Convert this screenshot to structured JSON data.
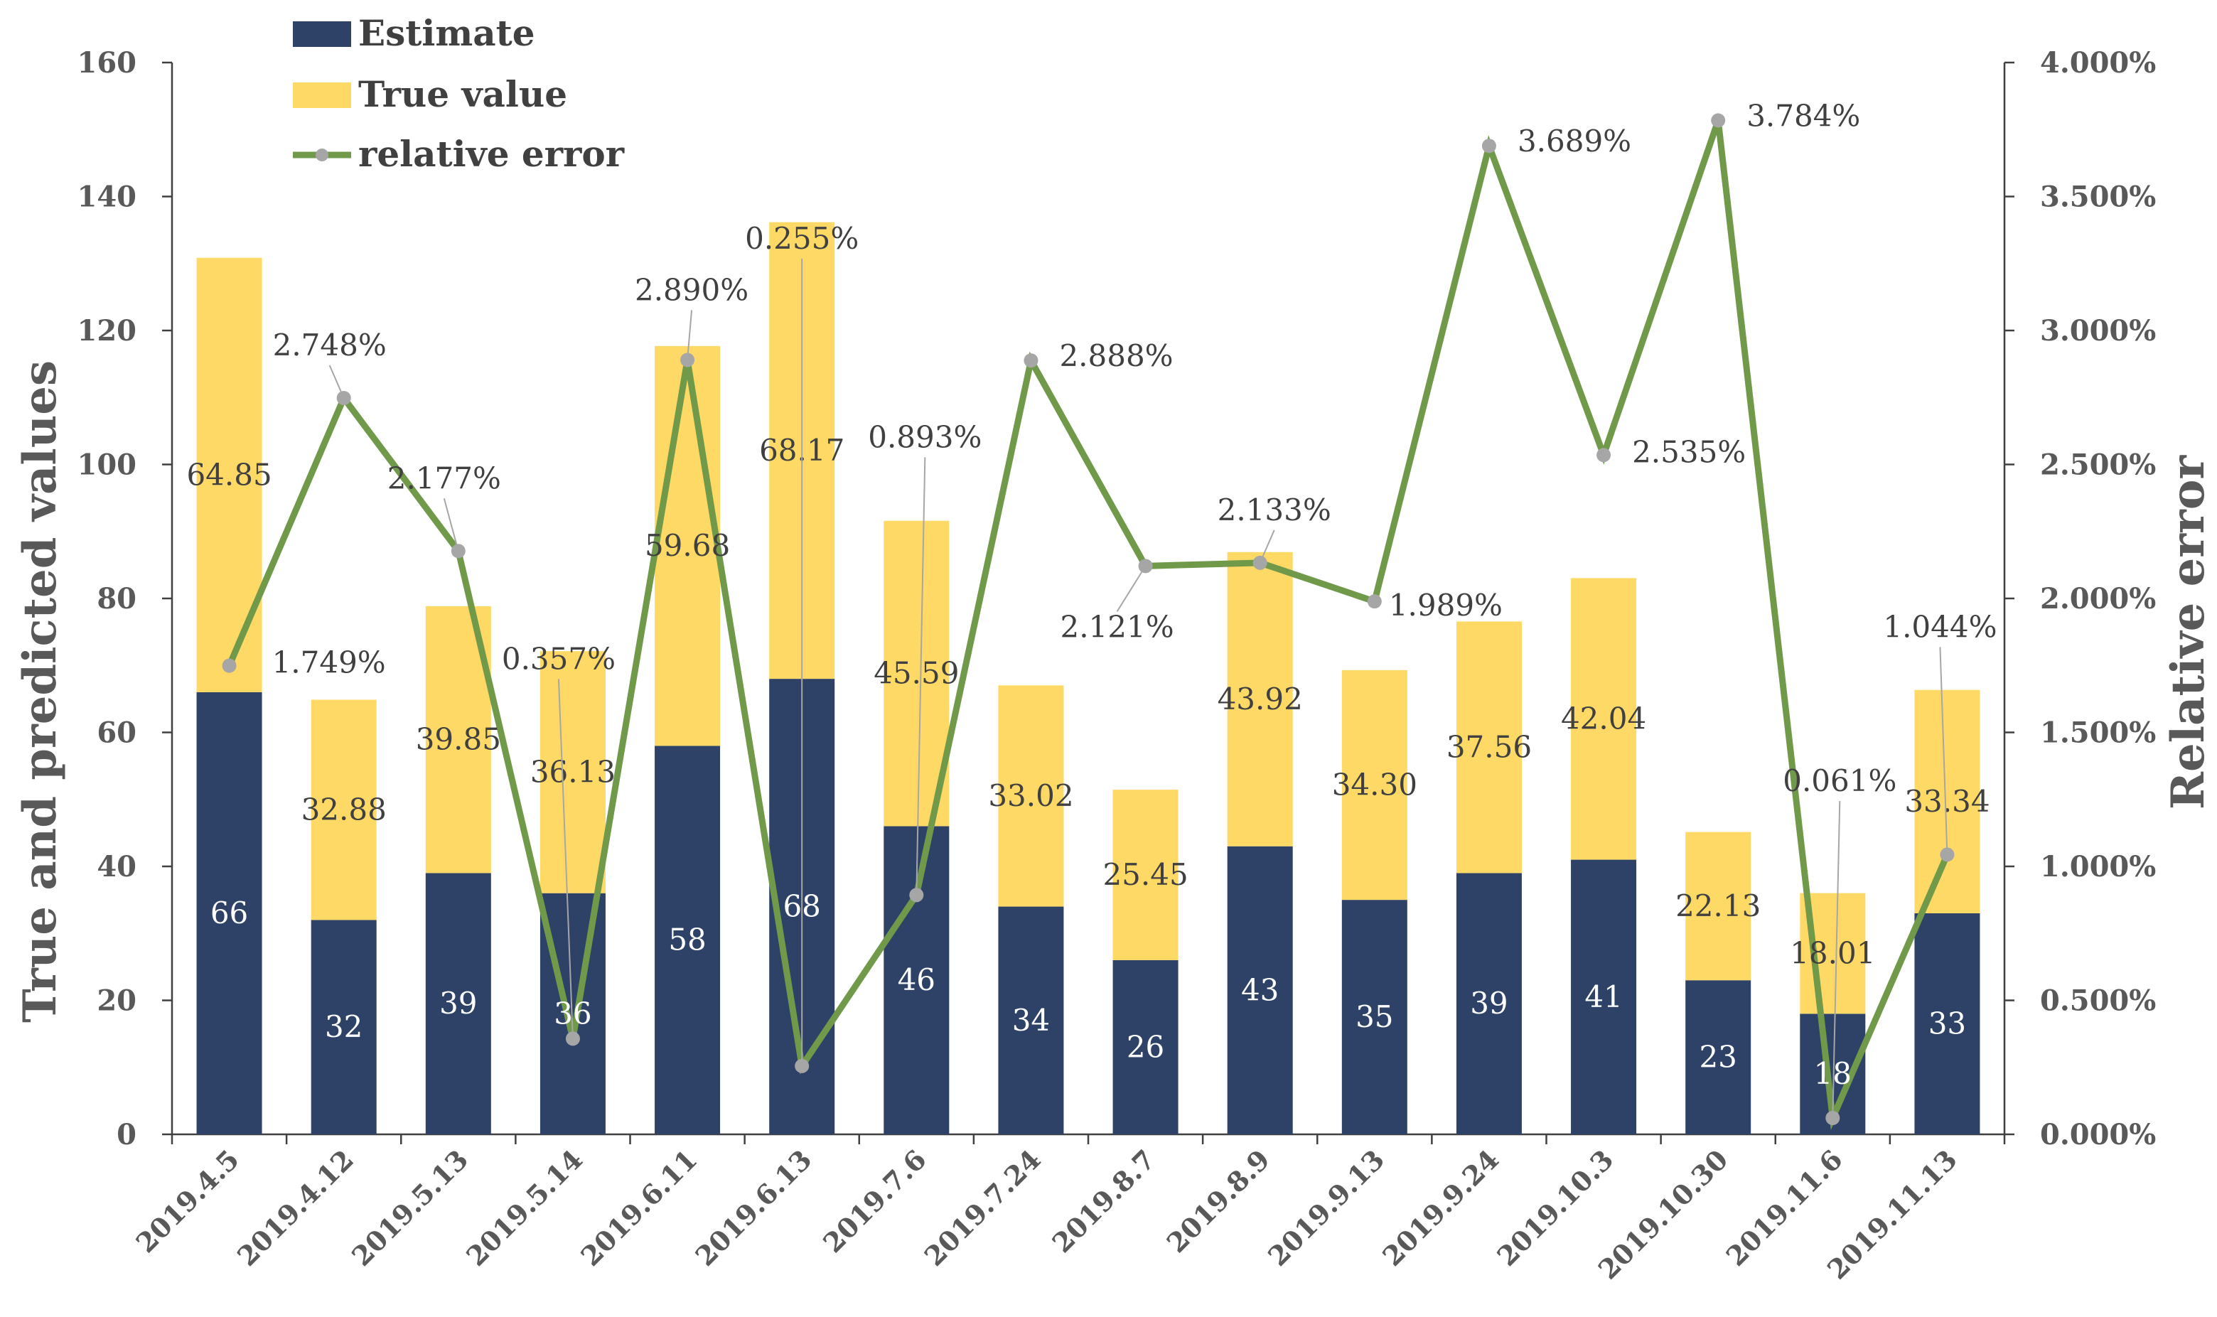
{
  "chart_data": {
    "type": "bar",
    "stacked": true,
    "categories": [
      "2019.4.5",
      "2019.4.12",
      "2019.5.13",
      "2019.5.14",
      "2019.6.11",
      "2019.6.13",
      "2019.7.6",
      "2019.7.24",
      "2019.8.7",
      "2019.8.9",
      "2019.9.13",
      "2019.9.24",
      "2019.10.3",
      "2019.10.30",
      "2019.11.6",
      "2019.11.13"
    ],
    "series": [
      {
        "name": "Estimate",
        "axis": "left",
        "color": "#2e4167",
        "values": [
          66,
          32,
          39,
          36,
          58,
          68,
          46,
          34,
          26,
          43,
          35,
          39,
          41,
          23,
          18,
          33
        ],
        "labels": [
          "66",
          "32",
          "39",
          "36",
          "58",
          "68",
          "46",
          "34",
          "26",
          "43",
          "35",
          "39",
          "41",
          "23",
          "18",
          "33"
        ]
      },
      {
        "name": "True value",
        "axis": "left",
        "color": "#ffd966",
        "values": [
          64.85,
          32.88,
          39.85,
          36.13,
          59.68,
          68.17,
          45.59,
          33.02,
          25.45,
          43.92,
          34.3,
          37.56,
          42.04,
          22.13,
          18.01,
          33.34
        ],
        "labels": [
          "64.85",
          "32.88",
          "39.85",
          "36.13",
          "59.68",
          "68.17",
          "45.59",
          "33.02",
          "25.45",
          "43.92",
          "34.30",
          "37.56",
          "42.04",
          "22.13",
          "18.01",
          "33.34"
        ]
      },
      {
        "name": "relative error",
        "type": "line",
        "axis": "right",
        "color": "#70994a",
        "marker_color": "#a6a6a6",
        "values": [
          1.749,
          2.748,
          2.177,
          0.357,
          2.89,
          0.255,
          0.893,
          2.888,
          2.121,
          2.133,
          1.989,
          3.689,
          2.535,
          3.784,
          0.061,
          1.044
        ],
        "labels": [
          "1.749%",
          "2.748%",
          "2.177%",
          "0.357%",
          "2.890%",
          "0.255%",
          "0.893%",
          "2.888%",
          "2.121%",
          "2.133%",
          "1.989%",
          "3.689%",
          "2.535%",
          "3.784%",
          "0.061%",
          "1.044%"
        ]
      }
    ],
    "ylabel": "True and predicted values",
    "y2label": "Relative error",
    "ylim": [
      0,
      160
    ],
    "y2lim": [
      0,
      4
    ],
    "yticks": [
      "0",
      "20",
      "40",
      "60",
      "80",
      "100",
      "120",
      "140",
      "160"
    ],
    "y2ticks": [
      "0.000%",
      "0.500%",
      "1.000%",
      "1.500%",
      "2.000%",
      "2.500%",
      "3.000%",
      "3.500%",
      "4.000%"
    ],
    "legend_position": "top-left"
  }
}
